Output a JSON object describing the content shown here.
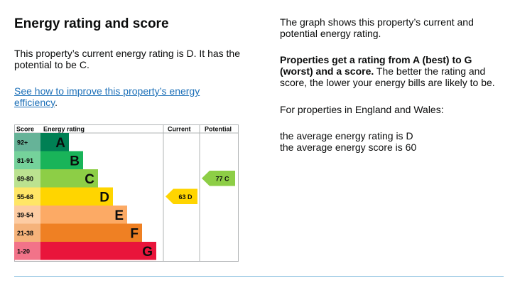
{
  "title": "Energy rating and score",
  "intro": "This property’s current energy rating is D. It has the potential to be C.",
  "link_text": "See how to improve this property’s energy efficiency",
  "link_suffix": ".",
  "right": {
    "p1": "The graph shows this property’s current and potential energy rating.",
    "p2_bold": "Properties get a rating from A (best) to G (worst) and a score.",
    "p2_rest": " The better the rating and score, the lower your energy bills are likely to be.",
    "p3": "For properties in England and Wales:",
    "avg_rating": "the average energy rating is D",
    "avg_score": "the average energy score is 60"
  },
  "chart_data": {
    "type": "table",
    "headers": {
      "score": "Score",
      "rating": "Energy rating",
      "current": "Current",
      "potential": "Potential"
    },
    "bands": [
      {
        "range": "92+",
        "letter": "A",
        "color": "#008054",
        "scorecolor": "#66b398"
      },
      {
        "range": "81-91",
        "letter": "B",
        "color": "#19b459",
        "scorecolor": "#75d29b"
      },
      {
        "range": "69-80",
        "letter": "C",
        "color": "#8dce46",
        "scorecolor": "#bbe290"
      },
      {
        "range": "55-68",
        "letter": "D",
        "color": "#ffd500",
        "scorecolor": "#ffe666"
      },
      {
        "range": "39-54",
        "letter": "E",
        "color": "#fcaa65",
        "scorecolor": "#fdcca3"
      },
      {
        "range": "21-38",
        "letter": "F",
        "color": "#ef8023",
        "scorecolor": "#f5b37b"
      },
      {
        "range": "1-20",
        "letter": "G",
        "color": "#e9153b",
        "scorecolor": "#f27389"
      }
    ],
    "current": {
      "score": 63,
      "letter": "D",
      "label": "63 D",
      "color": "#ffd500"
    },
    "potential": {
      "score": 77,
      "letter": "C",
      "label": "77 C",
      "color": "#8dce46"
    }
  }
}
